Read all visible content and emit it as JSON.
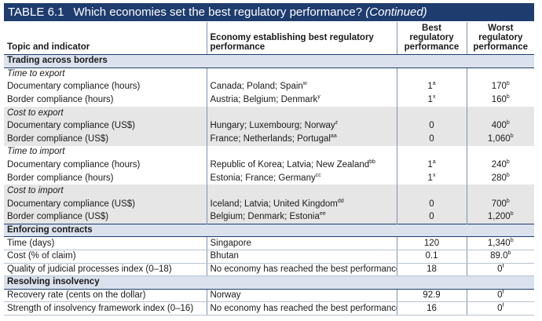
{
  "title": {
    "number": "TABLE 6.1",
    "text": "Which economies set the best regulatory performance?",
    "continued": "(Continued)"
  },
  "headers": {
    "topic": "Topic and indicator",
    "economy": "Economy establishing best regulatory performance",
    "best": "Best regulatory performance",
    "worst": "Worst regulatory performance"
  },
  "sections": [
    {
      "title": "Trading across borders",
      "groups": [
        {
          "subtitle": "Time to export",
          "shade": false,
          "rows": [
            {
              "indicator": "Documentary compliance (hours)",
              "economy": "Canada; Poland; Spain",
              "economy_note": "w",
              "best": "1",
              "best_note": "a",
              "worst": "170",
              "worst_note": "b"
            },
            {
              "indicator": "Border compliance (hours)",
              "economy": "Austria; Belgium; Denmark",
              "economy_note": "y",
              "best": "1",
              "best_note": "x",
              "worst": "160",
              "worst_note": "b"
            }
          ]
        },
        {
          "subtitle": "Cost to export",
          "shade": true,
          "rows": [
            {
              "indicator": "Documentary compliance (US$)",
              "economy": "Hungary; Luxembourg; Norway",
              "economy_note": "z",
              "best": "0",
              "best_note": "",
              "worst": "400",
              "worst_note": "b"
            },
            {
              "indicator": "Border compliance (US$)",
              "economy": "France; Netherlands; Portugal",
              "economy_note": "aa",
              "best": "0",
              "best_note": "",
              "worst": "1,060",
              "worst_note": "b"
            }
          ]
        },
        {
          "subtitle": "Time to import",
          "shade": false,
          "rows": [
            {
              "indicator": "Documentary compliance (hours)",
              "economy": "Republic of Korea; Latvia; New Zealand",
              "economy_note": "bb",
              "best": "1",
              "best_note": "a",
              "worst": "240",
              "worst_note": "b"
            },
            {
              "indicator": "Border compliance (hours)",
              "economy": "Estonia; France; Germany",
              "economy_note": "cc",
              "best": "1",
              "best_note": "x",
              "worst": "280",
              "worst_note": "b"
            }
          ]
        },
        {
          "subtitle": "Cost to import",
          "shade": true,
          "rows": [
            {
              "indicator": "Documentary compliance (US$)",
              "economy": "Iceland; Latvia; United Kingdom",
              "economy_note": "dd",
              "best": "0",
              "best_note": "",
              "worst": "700",
              "worst_note": "b"
            },
            {
              "indicator": "Border compliance (US$)",
              "economy": "Belgium; Denmark; Estonia",
              "economy_note": "ee",
              "best": "0",
              "best_note": "",
              "worst": "1,200",
              "worst_note": "b"
            }
          ]
        }
      ]
    },
    {
      "title": "Enforcing contracts",
      "groups": [
        {
          "subtitle": "",
          "shade": false,
          "rows": [
            {
              "indicator": "Time (days)",
              "economy": "Singapore",
              "economy_note": "",
              "best": "120",
              "best_note": "",
              "worst": "1,340",
              "worst_note": "b"
            },
            {
              "indicator": "Cost (% of claim)",
              "economy": "Bhutan",
              "economy_note": "",
              "best": "0.1",
              "best_note": "",
              "worst": "89.0",
              "worst_note": "b"
            },
            {
              "indicator": "Quality of judicial processes index (0–18)",
              "economy": "No economy has reached the best performance yet.",
              "economy_note": "",
              "best": "18",
              "best_note": "",
              "worst": "0",
              "worst_note": "f"
            }
          ]
        }
      ]
    },
    {
      "title": "Resolving insolvency",
      "groups": [
        {
          "subtitle": "",
          "shade": false,
          "rows": [
            {
              "indicator": "Recovery rate (cents on the dollar)",
              "economy": "Norway",
              "economy_note": "",
              "best": "92.9",
              "best_note": "",
              "worst": "0",
              "worst_note": "f"
            },
            {
              "indicator": "Strength of insolvency framework index (0–16)",
              "economy": "No economy has reached the best performance yet.",
              "economy_note": "",
              "best": "16",
              "best_note": "",
              "worst": "0",
              "worst_note": "f"
            }
          ]
        }
      ]
    }
  ]
}
